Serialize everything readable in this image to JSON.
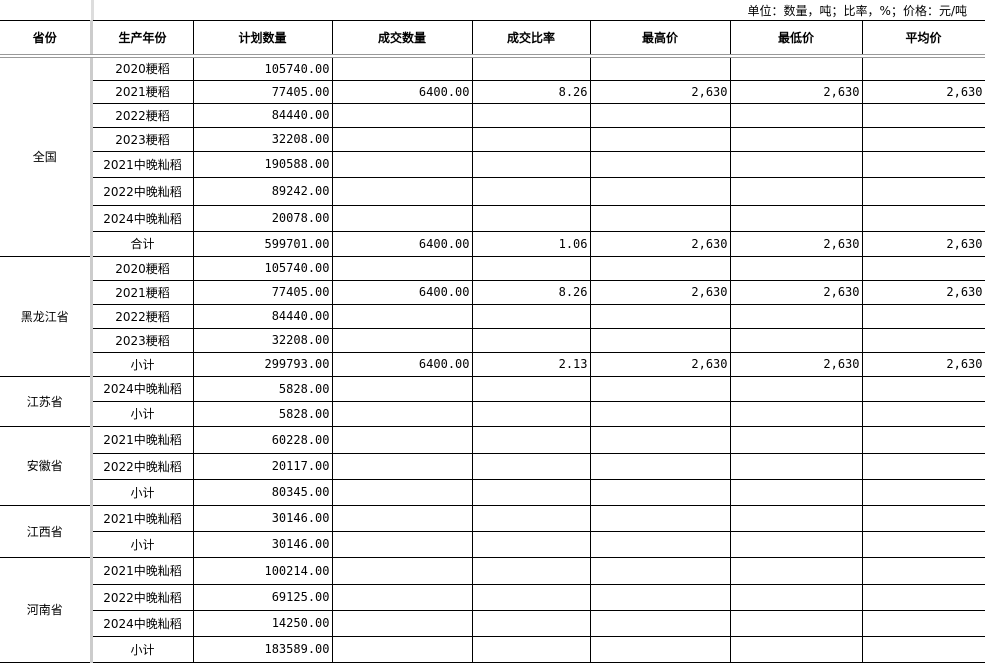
{
  "unit_note": "单位：数量，吨；比率，%；价格：元/吨",
  "headers": [
    "省份",
    "生产年份",
    "计划数量",
    "成交数量",
    "成交比率",
    "最高价",
    "最低价",
    "平均价"
  ],
  "groups": [
    {
      "province": "全国",
      "rows": [
        [
          "2020粳稻",
          "105740.00",
          "",
          "",
          "",
          "",
          ""
        ],
        [
          "2021粳稻",
          "77405.00",
          "6400.00",
          "8.26",
          "2,630",
          "2,630",
          "2,630"
        ],
        [
          "2022粳稻",
          "84440.00",
          "",
          "",
          "",
          "",
          ""
        ],
        [
          "2023粳稻",
          "32208.00",
          "",
          "",
          "",
          "",
          ""
        ],
        [
          "2021中晚籼稻",
          "190588.00",
          "",
          "",
          "",
          "",
          ""
        ],
        [
          "2022中晚籼稻",
          "89242.00",
          "",
          "",
          "",
          "",
          ""
        ],
        [
          "2024中晚籼稻",
          "20078.00",
          "",
          "",
          "",
          "",
          ""
        ],
        [
          "合计",
          "599701.00",
          "6400.00",
          "1.06",
          "2,630",
          "2,630",
          "2,630"
        ]
      ]
    },
    {
      "province": "黑龙江省",
      "rows": [
        [
          "2020粳稻",
          "105740.00",
          "",
          "",
          "",
          "",
          ""
        ],
        [
          "2021粳稻",
          "77405.00",
          "6400.00",
          "8.26",
          "2,630",
          "2,630",
          "2,630"
        ],
        [
          "2022粳稻",
          "84440.00",
          "",
          "",
          "",
          "",
          ""
        ],
        [
          "2023粳稻",
          "32208.00",
          "",
          "",
          "",
          "",
          ""
        ],
        [
          "小计",
          "299793.00",
          "6400.00",
          "2.13",
          "2,630",
          "2,630",
          "2,630"
        ]
      ]
    },
    {
      "province": "江苏省",
      "rows": [
        [
          "2024中晚籼稻",
          "5828.00",
          "",
          "",
          "",
          "",
          ""
        ],
        [
          "小计",
          "5828.00",
          "",
          "",
          "",
          "",
          ""
        ]
      ]
    },
    {
      "province": "安徽省",
      "rows": [
        [
          "2021中晚籼稻",
          "60228.00",
          "",
          "",
          "",
          "",
          ""
        ],
        [
          "2022中晚籼稻",
          "20117.00",
          "",
          "",
          "",
          "",
          ""
        ],
        [
          "小计",
          "80345.00",
          "",
          "",
          "",
          "",
          ""
        ]
      ]
    },
    {
      "province": "江西省",
      "rows": [
        [
          "2021中晚籼稻",
          "30146.00",
          "",
          "",
          "",
          "",
          ""
        ],
        [
          "小计",
          "30146.00",
          "",
          "",
          "",
          "",
          ""
        ]
      ]
    },
    {
      "province": "河南省",
      "rows": [
        [
          "2021中晚籼稻",
          "100214.00",
          "",
          "",
          "",
          "",
          ""
        ],
        [
          "2022中晚籼稻",
          "69125.00",
          "",
          "",
          "",
          "",
          ""
        ],
        [
          "2024中晚籼稻",
          "14250.00",
          "",
          "",
          "",
          "",
          ""
        ],
        [
          "小计",
          "183589.00",
          "",
          "",
          "",
          "",
          ""
        ]
      ]
    }
  ]
}
